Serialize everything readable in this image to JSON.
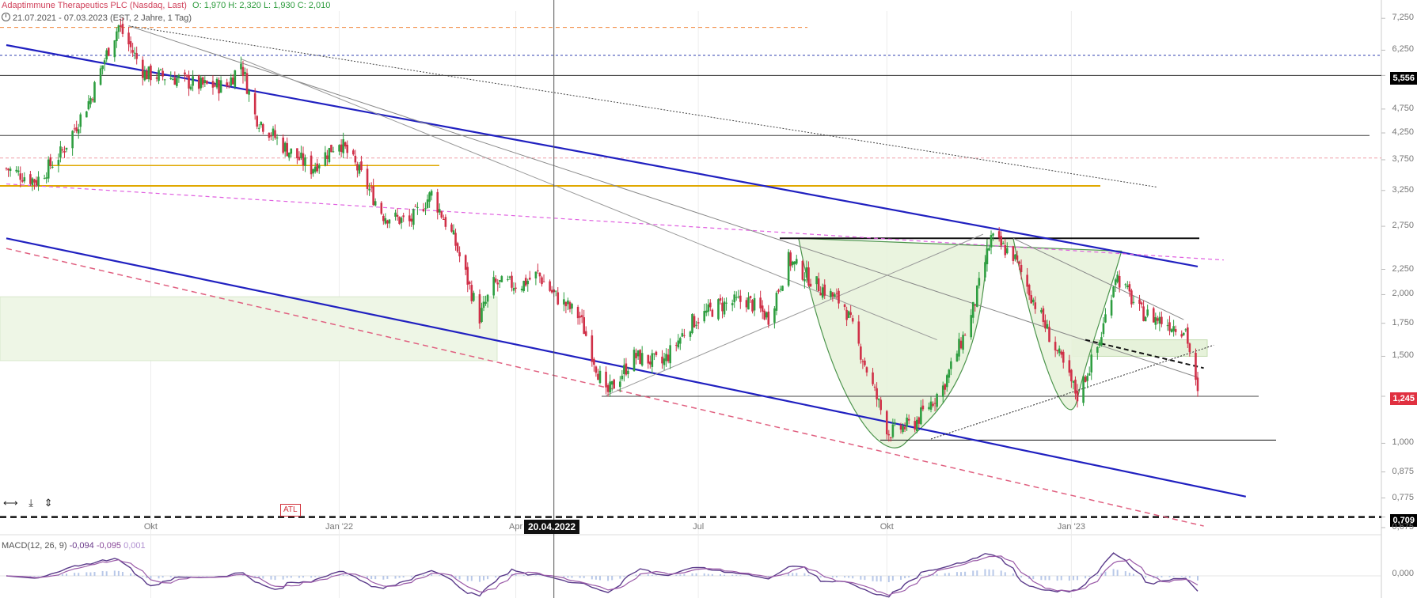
{
  "header": {
    "title": "Adaptimmune Therapeutics PLC (Nasdaq, Last)",
    "ohlc": "O: 1,970  H: 2,320  L: 1,930  C: 2,010",
    "range": "21.07.2021 - 07.03.2023",
    "settings": "(EST, 2 Jahre, 1 Tag)"
  },
  "tools": {
    "resize": "⟷",
    "download": "⤓",
    "split": "⇕"
  },
  "atl_label": "ATL",
  "crosshair_label": "20.04.2022",
  "price_tags": {
    "upper": "5,556",
    "last": "1,245",
    "lower": "0,709"
  },
  "macd": {
    "label": "MACD(12, 26, 9)",
    "v1": "-0,094",
    "v2": "-0,095",
    "v3": "0,001",
    "zero": "0,000"
  },
  "colors": {
    "up": "#2e9e40",
    "down": "#d03048",
    "channel": "#2020c0",
    "gold": "#e0a800",
    "magenta": "#e060e0"
  },
  "chart_data": {
    "type": "candlestick",
    "title": "Adaptimmune Therapeutics PLC (Nasdaq, Last)",
    "scale": "log",
    "ylim": [
      0.675,
      7.5
    ],
    "y_ticks": [
      "7,250",
      "6,250",
      "5,556",
      "4,750",
      "4,250",
      "3,750",
      "3,250",
      "2,750",
      "2,250",
      "2,000",
      "1,750",
      "1,500",
      "1,245",
      "1,000",
      "0,875",
      "0,775",
      "0,709",
      "0,675"
    ],
    "x_ticks": [
      "Okt",
      "Jan '22",
      "Apr",
      "Jul",
      "Okt",
      "Jan '23"
    ],
    "x_range": [
      "2021-07-21",
      "2023-03-07"
    ],
    "close_path": [
      [
        "2021-07-21",
        3.6
      ],
      [
        "2021-08-05",
        3.4
      ],
      [
        "2021-08-18",
        3.9
      ],
      [
        "2021-09-01",
        5.0
      ],
      [
        "2021-09-10",
        6.3
      ],
      [
        "2021-09-15",
        7.0
      ],
      [
        "2021-09-28",
        5.6
      ],
      [
        "2021-10-12",
        5.5
      ],
      [
        "2021-10-26",
        5.3
      ],
      [
        "2021-11-08",
        5.3
      ],
      [
        "2021-11-15",
        5.9
      ],
      [
        "2021-11-22",
        4.6
      ],
      [
        "2021-12-06",
        4.0
      ],
      [
        "2021-12-20",
        3.6
      ],
      [
        "2022-01-03",
        4.1
      ],
      [
        "2022-01-12",
        3.6
      ],
      [
        "2022-01-25",
        2.9
      ],
      [
        "2022-02-07",
        2.8
      ],
      [
        "2022-02-18",
        3.2
      ],
      [
        "2022-03-01",
        2.6
      ],
      [
        "2022-03-14",
        1.8
      ],
      [
        "2022-03-21",
        2.1
      ],
      [
        "2022-04-04",
        2.1
      ],
      [
        "2022-04-12",
        2.2
      ],
      [
        "2022-04-20",
        2.0
      ],
      [
        "2022-05-03",
        1.8
      ],
      [
        "2022-05-16",
        1.25
      ],
      [
        "2022-05-30",
        1.5
      ],
      [
        "2022-06-13",
        1.45
      ],
      [
        "2022-06-27",
        1.75
      ],
      [
        "2022-07-11",
        1.9
      ],
      [
        "2022-07-25",
        1.95
      ],
      [
        "2022-08-05",
        1.8
      ],
      [
        "2022-08-15",
        2.35
      ],
      [
        "2022-08-29",
        2.1
      ],
      [
        "2022-09-12",
        1.9
      ],
      [
        "2022-09-26",
        1.3
      ],
      [
        "2022-10-04",
        1.05
      ],
      [
        "2022-10-17",
        1.1
      ],
      [
        "2022-10-31",
        1.3
      ],
      [
        "2022-11-14",
        1.8
      ],
      [
        "2022-11-24",
        2.6
      ],
      [
        "2022-12-05",
        2.4
      ],
      [
        "2022-12-19",
        1.8
      ],
      [
        "2023-01-02",
        1.35
      ],
      [
        "2023-01-06",
        1.25
      ],
      [
        "2023-01-17",
        1.6
      ],
      [
        "2023-01-25",
        2.2
      ],
      [
        "2023-02-06",
        1.85
      ],
      [
        "2023-02-20",
        1.75
      ],
      [
        "2023-03-01",
        1.7
      ],
      [
        "2023-03-07",
        1.245
      ]
    ],
    "last_price": 1.245,
    "indicators": [
      {
        "name": "MACD(12, 26, 9)",
        "values": [
          -0.094,
          -0.095,
          0.001
        ]
      }
    ]
  }
}
